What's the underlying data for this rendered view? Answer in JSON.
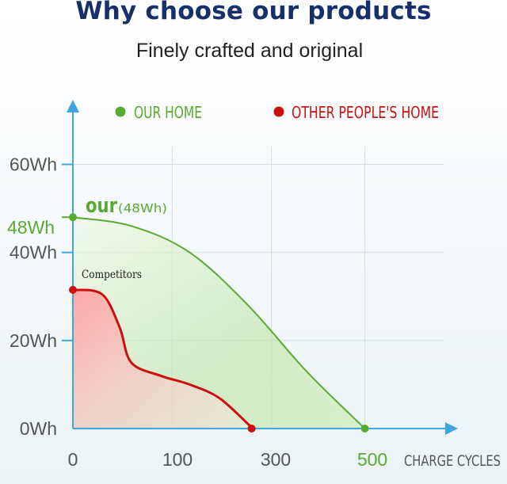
{
  "header": {
    "title": "Why choose our products",
    "subtitle": "Finely crafted and original"
  },
  "colors": {
    "ours": "#5aaa32",
    "theirs": "#cc1010",
    "axis": "#3fa6e0",
    "title": "#16306b"
  },
  "chart_data": {
    "type": "area",
    "xlabel": "CHARGE CYCLES",
    "ylabel": "",
    "xlim": [
      0,
      600
    ],
    "ylim": [
      0,
      66
    ],
    "grid": true,
    "legend_position": "top",
    "x_ticks": [
      {
        "value": 0,
        "label": "0"
      },
      {
        "value": 100,
        "label": "100"
      },
      {
        "value": 300,
        "label": "300"
      },
      {
        "value": 500,
        "label": "500"
      }
    ],
    "y_ticks": [
      {
        "value": 0,
        "label": "0Wh"
      },
      {
        "value": 20,
        "label": "20Wh"
      },
      {
        "value": 40,
        "label": "40Wh"
      },
      {
        "value": 60,
        "label": "60Wh"
      }
    ],
    "highlight_tick": {
      "value": 48,
      "label": "48Wh"
    },
    "series": [
      {
        "name": "OUR HOME",
        "color": "#5aaa32",
        "points": [
          [
            0,
            48
          ],
          [
            100,
            46
          ],
          [
            200,
            40
          ],
          [
            300,
            28
          ],
          [
            400,
            13
          ],
          [
            500,
            0
          ]
        ],
        "annotation": {
          "main": "our",
          "detail": "(48Wh)"
        }
      },
      {
        "name": "OTHER PEOPLE'S HOME",
        "color": "#cc1010",
        "points": [
          [
            0,
            31.5
          ],
          [
            50,
            30.5
          ],
          [
            80,
            23
          ],
          [
            100,
            15
          ],
          [
            150,
            12
          ],
          [
            200,
            10
          ],
          [
            250,
            7
          ],
          [
            300,
            1
          ],
          [
            306,
            0
          ]
        ],
        "annotation": {
          "main": "Competitors"
        }
      }
    ]
  }
}
